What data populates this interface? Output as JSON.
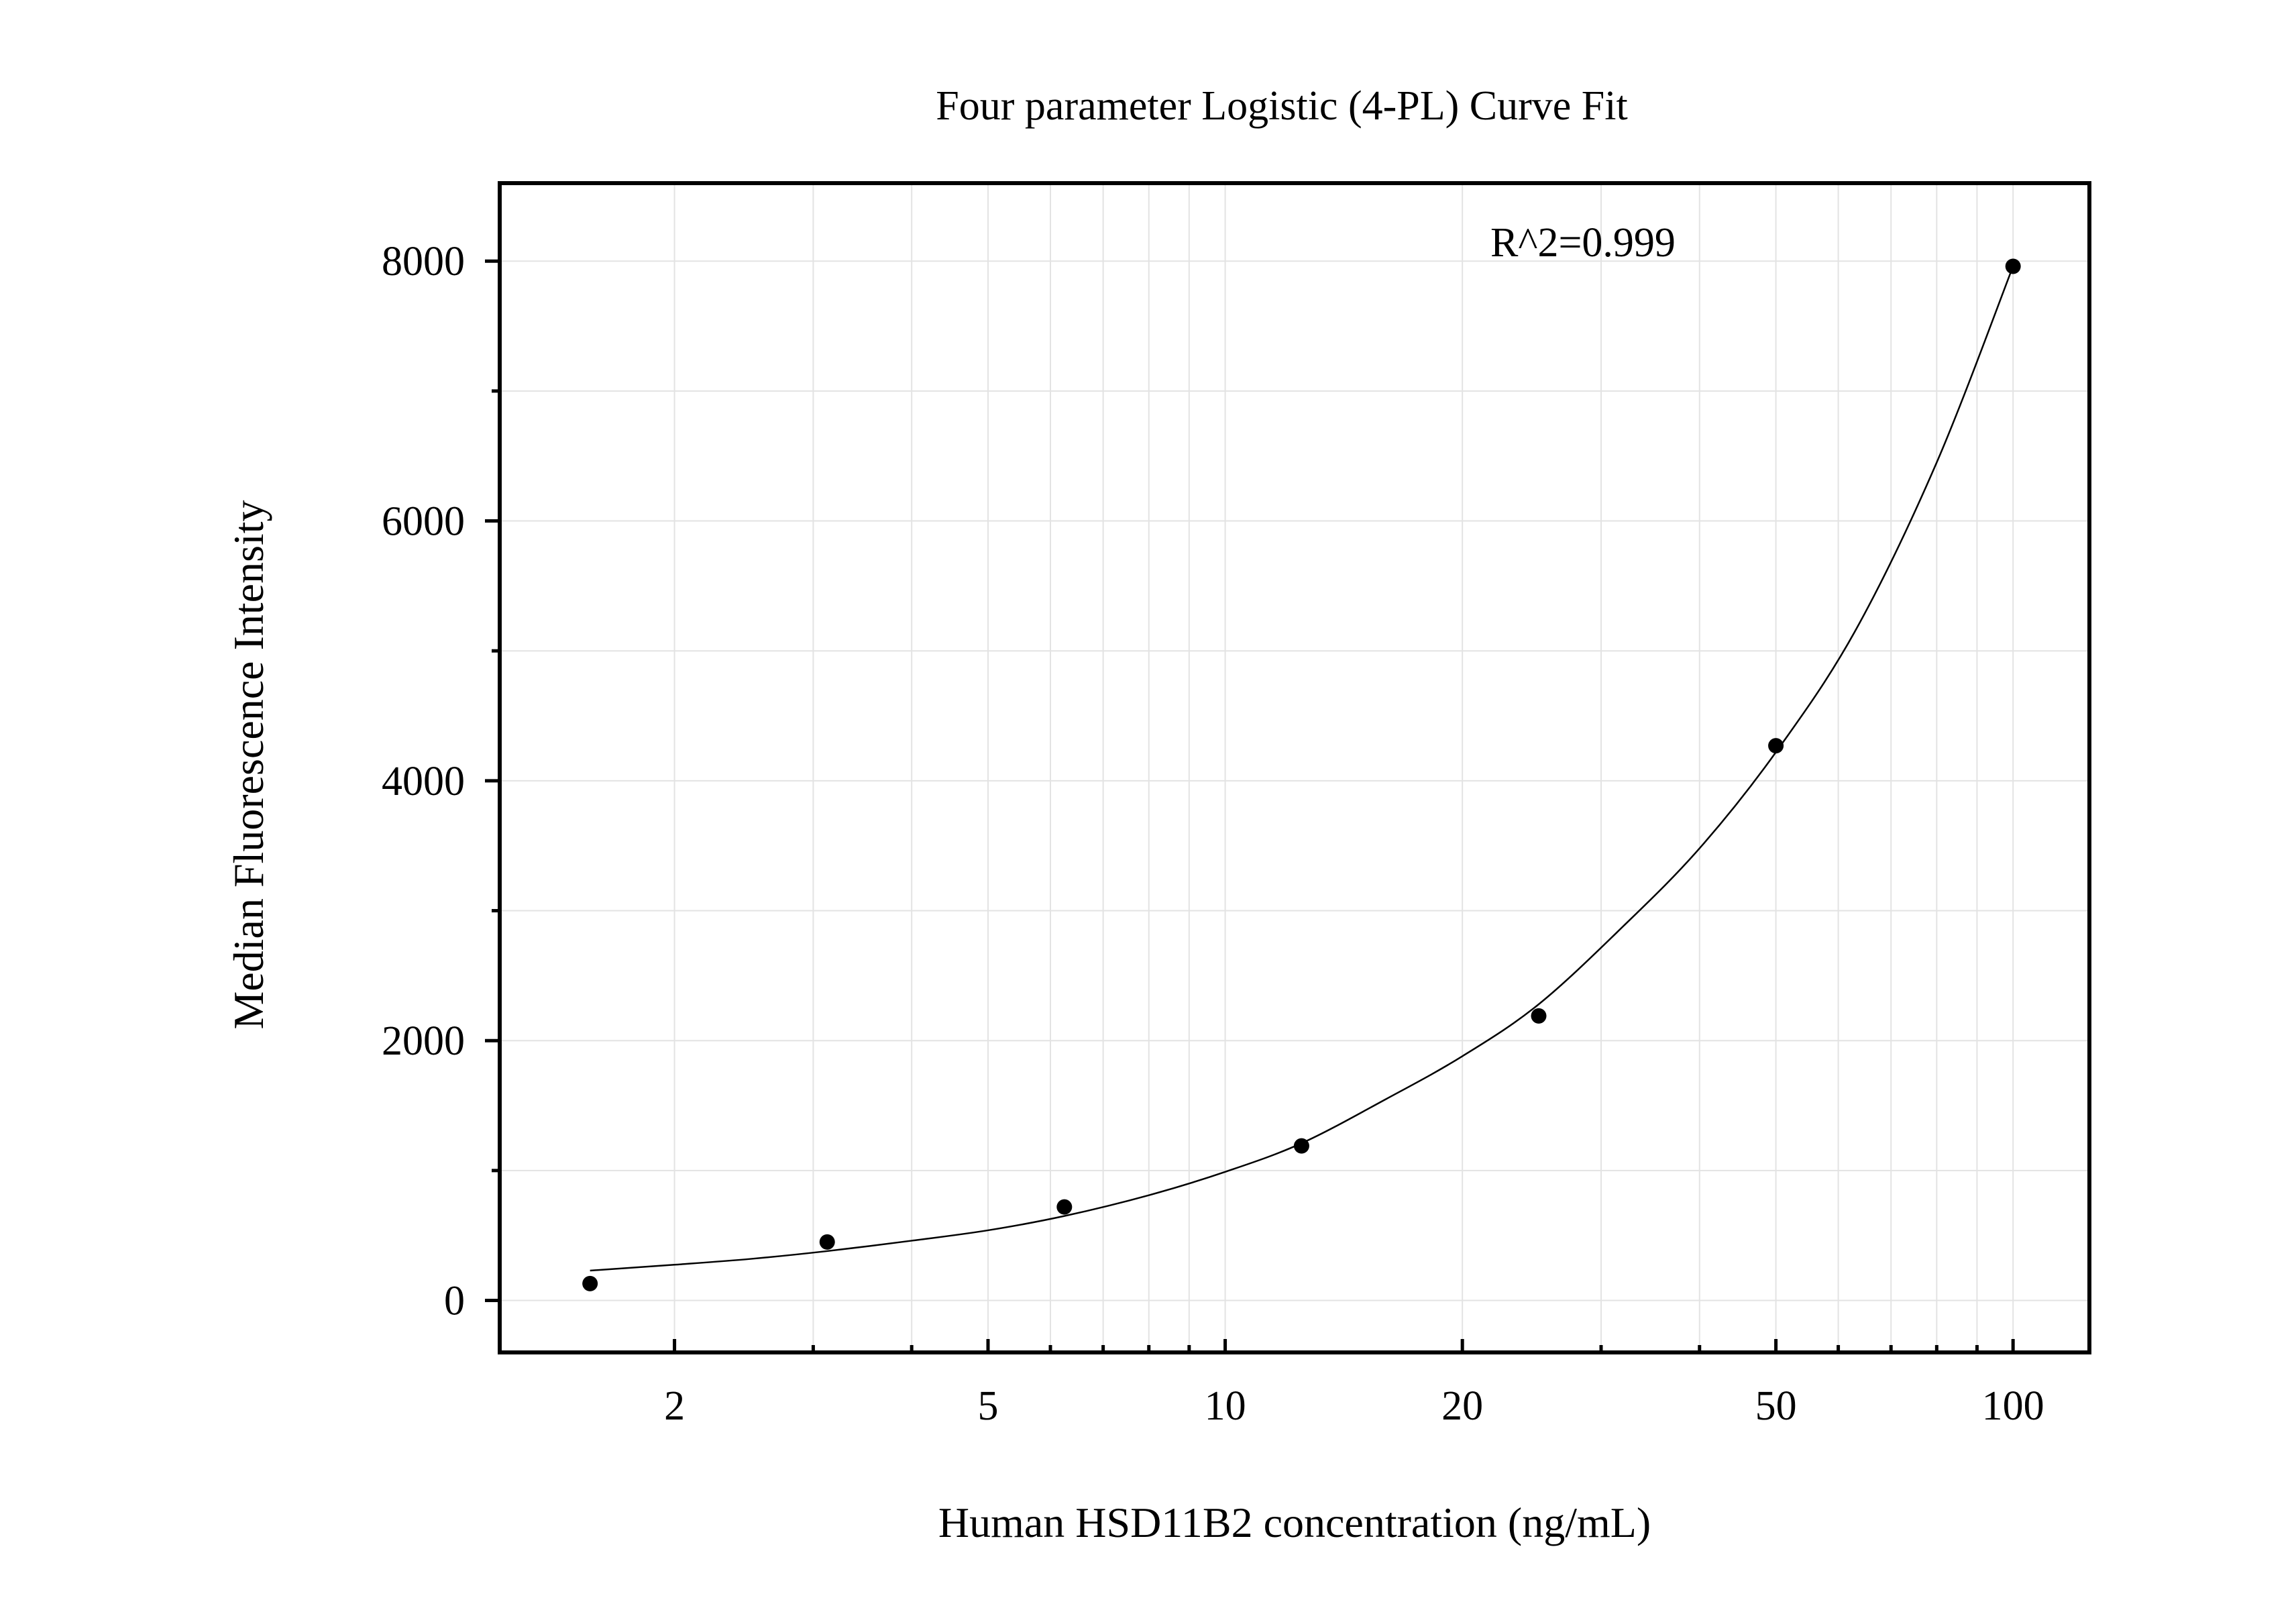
{
  "chart_data": {
    "type": "scatter",
    "title": "Four parameter Logistic (4-PL) Curve Fit",
    "xlabel": "Human HSD11B2 concentration (ng/mL)",
    "ylabel": "Median Fluorescence Intensity",
    "x_scale": "log",
    "xlim": [
      1.2,
      125
    ],
    "ylim": [
      -400,
      8600
    ],
    "x_ticks": [
      2,
      5,
      10,
      20,
      50,
      100
    ],
    "x_tick_labels": [
      "2",
      "5",
      "10",
      "20",
      "50",
      "100"
    ],
    "y_ticks": [
      0,
      2000,
      4000,
      6000,
      8000
    ],
    "y_tick_labels": [
      "0",
      "2000",
      "4000",
      "6000",
      "8000"
    ],
    "y_minor_ticks": [
      1000,
      3000,
      5000,
      7000
    ],
    "grid": true,
    "annotation": "R^2=0.999",
    "series": [
      {
        "points": [
          {
            "x": 1.5625,
            "y": 130
          },
          {
            "x": 3.125,
            "y": 450
          },
          {
            "x": 6.25,
            "y": 720
          },
          {
            "x": 12.5,
            "y": 1190
          },
          {
            "x": 25,
            "y": 2190
          },
          {
            "x": 50,
            "y": 4270
          },
          {
            "x": 100,
            "y": 7960
          }
        ]
      }
    ],
    "fit_curve": [
      {
        "x": 1.5625,
        "y": 230
      },
      {
        "x": 2,
        "y": 275
      },
      {
        "x": 2.5,
        "y": 320
      },
      {
        "x": 3.125,
        "y": 380
      },
      {
        "x": 4,
        "y": 460
      },
      {
        "x": 5,
        "y": 540
      },
      {
        "x": 6.25,
        "y": 650
      },
      {
        "x": 8,
        "y": 810
      },
      {
        "x": 10,
        "y": 990
      },
      {
        "x": 12.5,
        "y": 1210
      },
      {
        "x": 16,
        "y": 1550
      },
      {
        "x": 20,
        "y": 1880
      },
      {
        "x": 25,
        "y": 2280
      },
      {
        "x": 32,
        "y": 2880
      },
      {
        "x": 40,
        "y": 3480
      },
      {
        "x": 50,
        "y": 4220
      },
      {
        "x": 63,
        "y": 5150
      },
      {
        "x": 80,
        "y": 6450
      },
      {
        "x": 100,
        "y": 7960
      }
    ]
  }
}
